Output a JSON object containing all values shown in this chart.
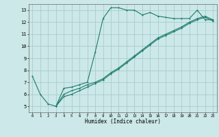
{
  "title": "",
  "xlabel": "Humidex (Indice chaleur)",
  "bg_color": "#cce8e8",
  "grid_color": "#aacccc",
  "line_color": "#1a7a6a",
  "xlim": [
    -0.5,
    23.5
  ],
  "ylim": [
    4.5,
    13.5
  ],
  "xticks": [
    0,
    1,
    2,
    3,
    4,
    5,
    6,
    7,
    8,
    9,
    10,
    11,
    12,
    13,
    14,
    15,
    16,
    17,
    18,
    19,
    20,
    21,
    22,
    23
  ],
  "yticks": [
    5,
    6,
    7,
    8,
    9,
    10,
    11,
    12,
    13
  ],
  "series1_x": [
    0,
    1,
    2,
    3,
    4,
    5,
    6,
    7,
    8,
    9,
    10,
    11,
    12,
    13,
    14,
    15,
    16,
    17,
    18,
    19,
    20,
    21,
    22,
    23
  ],
  "series1_y": [
    7.5,
    6.0,
    5.2,
    5.0,
    6.5,
    6.6,
    6.8,
    7.0,
    9.5,
    12.3,
    13.2,
    13.2,
    13.0,
    13.0,
    12.6,
    12.8,
    12.5,
    12.4,
    12.3,
    12.3,
    12.3,
    13.0,
    12.2,
    12.2
  ],
  "series2_x": [
    3,
    4,
    5,
    6,
    7,
    8,
    9,
    10,
    11,
    12,
    13,
    14,
    15,
    16,
    17,
    18,
    19,
    20,
    21,
    22,
    23
  ],
  "series2_y": [
    5.0,
    6.0,
    6.3,
    6.5,
    6.8,
    7.0,
    7.3,
    7.8,
    8.2,
    8.7,
    9.2,
    9.7,
    10.2,
    10.7,
    11.0,
    11.3,
    11.6,
    12.0,
    12.3,
    12.5,
    12.2
  ],
  "series3_x": [
    3,
    4,
    5,
    6,
    7,
    8,
    9,
    10,
    11,
    12,
    13,
    14,
    15,
    16,
    17,
    18,
    19,
    20,
    21,
    22,
    23
  ],
  "series3_y": [
    5.0,
    5.8,
    6.0,
    6.3,
    6.6,
    6.9,
    7.2,
    7.7,
    8.1,
    8.6,
    9.1,
    9.6,
    10.1,
    10.6,
    10.9,
    11.2,
    11.5,
    11.9,
    12.2,
    12.4,
    12.1
  ]
}
